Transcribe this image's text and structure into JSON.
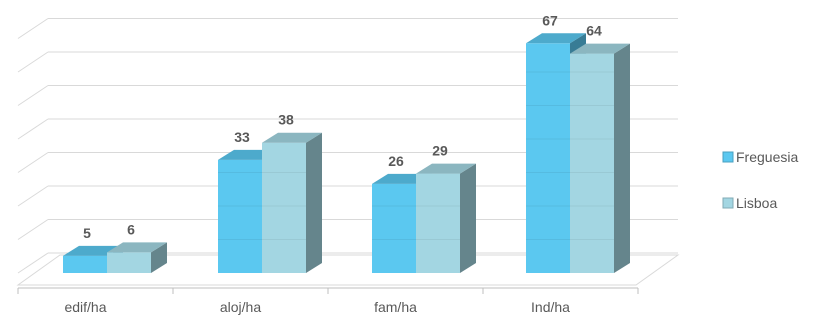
{
  "chart_data": {
    "type": "bar",
    "categories": [
      "edif/ha",
      "aloj/ha",
      "fam/ha",
      "Ind/ha"
    ],
    "series": [
      {
        "name": "Freguesia",
        "values": [
          5,
          33,
          26,
          67
        ],
        "color": "#5BC8F0"
      },
      {
        "name": "Lisboa",
        "values": [
          6,
          38,
          29,
          64
        ],
        "color": "#A3D6E2"
      }
    ],
    "ylim": [
      0,
      70
    ],
    "grid": true,
    "three_d": true,
    "legend_position": "right"
  }
}
